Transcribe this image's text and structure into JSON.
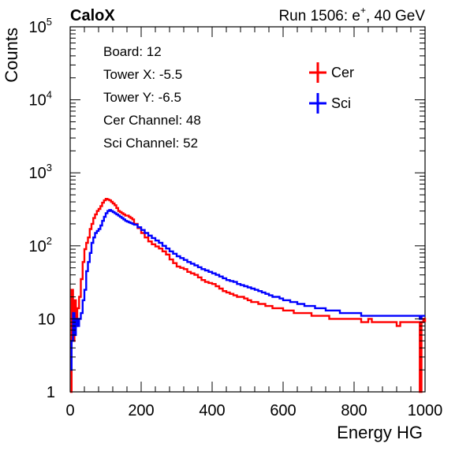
{
  "header": {
    "left": "CaloX",
    "right_prefix": "Run 1506: e",
    "right_sup": "+",
    "right_suffix": ", 40 GeV"
  },
  "info_box": {
    "lines": [
      "Board: 12",
      "Tower X: -5.5",
      "Tower Y: -6.5",
      "Cer Channel: 48",
      "Sci Channel: 52"
    ]
  },
  "colors": {
    "cer": "#ff0000",
    "sci": "#0000ff"
  },
  "chart_data": {
    "type": "line",
    "title": "",
    "xlabel": "Energy HG",
    "ylabel": "Counts",
    "xlim": [
      0,
      1000
    ],
    "ylim": [
      1,
      100000
    ],
    "y_scale": "log",
    "grid": false,
    "legend_placement": "top-right",
    "x_ticks": [
      0,
      200,
      400,
      600,
      800,
      1000
    ],
    "y_ticks": [
      {
        "value": 1,
        "base": "1",
        "exp": ""
      },
      {
        "value": 10,
        "base": "10",
        "exp": ""
      },
      {
        "value": 100,
        "base": "10",
        "exp": "2"
      },
      {
        "value": 1000,
        "base": "10",
        "exp": "3"
      },
      {
        "value": 10000,
        "base": "10",
        "exp": "4"
      },
      {
        "value": 100000,
        "base": "10",
        "exp": "5"
      }
    ],
    "series": [
      {
        "name": "Cer",
        "color": "#ff0000",
        "x": [
          0,
          4,
          8,
          12,
          16,
          20,
          25,
          30,
          35,
          40,
          45,
          50,
          55,
          60,
          65,
          70,
          75,
          80,
          85,
          90,
          95,
          100,
          105,
          110,
          115,
          120,
          125,
          130,
          135,
          140,
          145,
          150,
          155,
          160,
          165,
          170,
          175,
          180,
          190,
          200,
          210,
          220,
          230,
          240,
          250,
          260,
          270,
          280,
          290,
          300,
          310,
          320,
          330,
          340,
          350,
          360,
          370,
          380,
          390,
          400,
          410,
          420,
          430,
          440,
          450,
          460,
          470,
          480,
          490,
          500,
          510,
          520,
          530,
          540,
          550,
          560,
          570,
          580,
          590,
          600,
          610,
          620,
          630,
          640,
          650,
          660,
          670,
          680,
          690,
          700,
          710,
          720,
          730,
          740,
          750,
          760,
          770,
          780,
          790,
          800,
          810,
          820,
          830,
          840,
          850,
          860,
          870,
          880,
          890,
          900,
          910,
          920,
          930,
          940,
          950,
          960,
          970,
          980,
          985,
          990,
          995,
          1000
        ],
        "y": [
          1,
          25,
          5,
          18,
          8,
          14,
          20,
          35,
          60,
          90,
          110,
          130,
          170,
          200,
          240,
          270,
          300,
          320,
          350,
          390,
          420,
          440,
          430,
          420,
          400,
          380,
          360,
          330,
          300,
          290,
          280,
          270,
          260,
          260,
          250,
          240,
          230,
          200,
          175,
          150,
          130,
          115,
          105,
          98,
          92,
          84,
          76,
          65,
          58,
          52,
          50,
          48,
          44,
          42,
          40,
          37,
          34,
          32,
          31,
          30,
          28,
          26,
          24,
          23,
          22,
          21,
          20,
          20,
          19,
          18,
          17,
          17,
          16,
          16,
          15,
          15,
          14,
          14,
          14,
          13,
          13,
          13,
          12,
          12,
          12,
          12,
          12,
          11,
          11,
          11,
          11,
          11,
          10,
          10,
          10,
          10,
          10,
          10,
          10,
          10,
          10,
          9,
          9,
          10,
          9,
          9,
          9,
          9,
          9,
          9,
          9,
          8,
          9,
          9,
          9,
          9,
          9,
          9,
          1,
          9,
          10,
          9
        ]
      },
      {
        "name": "Sci",
        "color": "#0000ff",
        "x": [
          0,
          4,
          8,
          12,
          16,
          20,
          25,
          30,
          35,
          40,
          45,
          50,
          55,
          60,
          65,
          70,
          75,
          80,
          85,
          90,
          95,
          100,
          105,
          110,
          115,
          120,
          125,
          130,
          135,
          140,
          145,
          150,
          155,
          160,
          165,
          170,
          175,
          180,
          190,
          200,
          210,
          220,
          230,
          240,
          250,
          260,
          270,
          280,
          290,
          300,
          310,
          320,
          330,
          340,
          350,
          360,
          370,
          380,
          390,
          400,
          410,
          420,
          430,
          440,
          450,
          460,
          470,
          480,
          490,
          500,
          510,
          520,
          530,
          540,
          550,
          560,
          570,
          580,
          590,
          600,
          610,
          620,
          630,
          640,
          650,
          660,
          670,
          680,
          690,
          700,
          710,
          720,
          730,
          740,
          750,
          760,
          770,
          780,
          790,
          800,
          810,
          820,
          830,
          840,
          850,
          860,
          870,
          880,
          890,
          900,
          910,
          920,
          930,
          940,
          950,
          960,
          970,
          980,
          985,
          990,
          995,
          1000
        ],
        "y": [
          2,
          5,
          12,
          6,
          10,
          8,
          10,
          12,
          18,
          25,
          45,
          60,
          80,
          110,
          130,
          150,
          160,
          170,
          190,
          220,
          250,
          280,
          300,
          310,
          300,
          290,
          280,
          270,
          260,
          250,
          240,
          230,
          220,
          215,
          210,
          205,
          200,
          195,
          180,
          165,
          150,
          138,
          128,
          118,
          110,
          100,
          92,
          84,
          78,
          72,
          68,
          64,
          60,
          57,
          54,
          51,
          48,
          46,
          44,
          42,
          40,
          38,
          36,
          34,
          33,
          32,
          30,
          29,
          28,
          27,
          26,
          25,
          24,
          23,
          22,
          21,
          20,
          20,
          19,
          18,
          18,
          17,
          17,
          16,
          16,
          15,
          15,
          15,
          14,
          14,
          14,
          13,
          13,
          13,
          13,
          12,
          12,
          12,
          12,
          12,
          12,
          11,
          11,
          11,
          11,
          11,
          11,
          11,
          11,
          11,
          11,
          11,
          11,
          11,
          11,
          11,
          11,
          11,
          10,
          11,
          11,
          11
        ]
      }
    ]
  }
}
